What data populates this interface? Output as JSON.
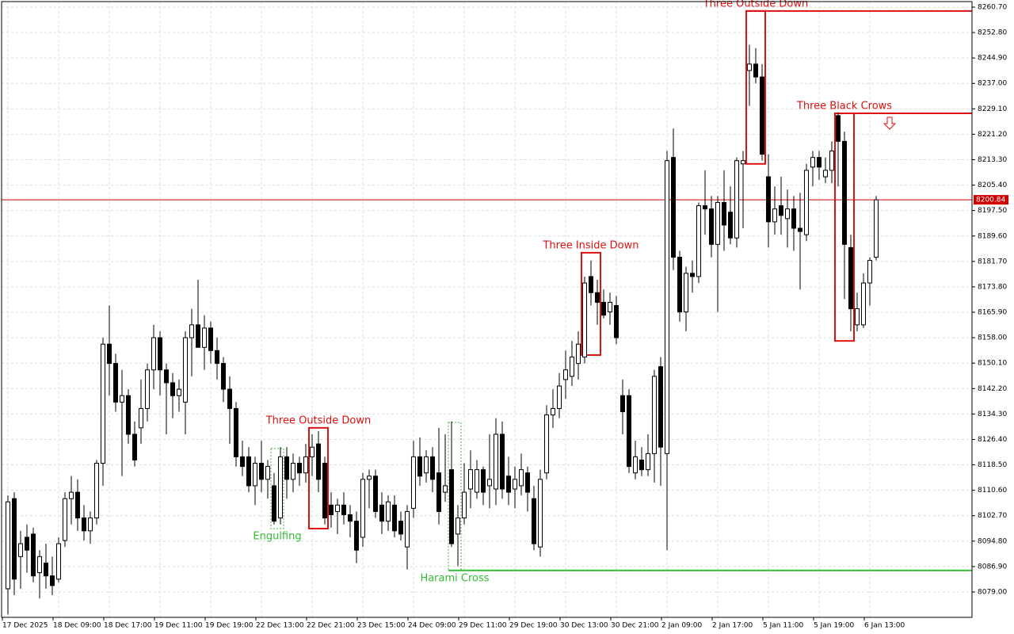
{
  "chart_data": {
    "type": "candlestick",
    "categories": [
      "17 Dec 2025",
      null,
      null,
      null,
      null,
      null,
      null,
      null,
      "18 Dec 09:00",
      null,
      null,
      null,
      null,
      null,
      null,
      null,
      "18 Dec 17:00",
      null,
      null,
      null,
      null,
      null,
      null,
      null,
      "19 Dec 11:00",
      null,
      null,
      null,
      null,
      null,
      null,
      null,
      "19 Dec 19:00",
      null,
      null,
      null,
      null,
      null,
      null,
      null,
      "22 Dec 13:00",
      null,
      null,
      null,
      null,
      null,
      null,
      null,
      "22 Dec 21:00",
      null,
      null,
      null,
      null,
      null,
      null,
      null,
      "23 Dec 15:00",
      null,
      null,
      null,
      null,
      null,
      null,
      null,
      "24 Dec 09:00",
      null,
      null,
      null,
      null,
      null,
      null,
      null,
      "29 Dec 11:00",
      null,
      null,
      null,
      null,
      null,
      null,
      null,
      "29 Dec 19:00",
      null,
      null,
      null,
      null,
      null,
      null,
      null,
      "30 Dec 13:00",
      null,
      null,
      null,
      null,
      null,
      null,
      null,
      "30 Dec 21:00",
      null,
      null,
      null,
      null,
      null,
      null,
      null,
      "2 Jan 09:00",
      null,
      null,
      null,
      null,
      null,
      null,
      null,
      "2 Jan 17:00",
      null,
      null,
      null,
      null,
      null,
      null,
      null,
      "5 Jan 11:00",
      null,
      null,
      null,
      null,
      null,
      null,
      null,
      "5 Jan 19:00",
      null,
      null,
      null,
      null,
      null,
      null,
      null,
      "6 Jan 13:00",
      null
    ],
    "ohlc": [
      [
        8080,
        8109,
        8072,
        8107
      ],
      [
        8108,
        8110,
        8078,
        8083
      ],
      [
        8090,
        8098,
        8080,
        8094
      ],
      [
        8096,
        8100,
        8085,
        8092
      ],
      [
        8097,
        8099,
        8082,
        8084
      ],
      [
        8085,
        8092,
        8077,
        8090
      ],
      [
        8088,
        8094,
        8080,
        8084
      ],
      [
        8084,
        8090,
        8078,
        8081
      ],
      [
        8083,
        8096,
        8082,
        8094
      ],
      [
        8095,
        8110,
        8093,
        8108
      ],
      [
        8108,
        8115,
        8100,
        8110
      ],
      [
        8110,
        8114,
        8098,
        8102
      ],
      [
        8102,
        8106,
        8095,
        8098
      ],
      [
        8098,
        8104,
        8094,
        8102
      ],
      [
        8102,
        8120,
        8100,
        8119
      ],
      [
        8119,
        8158,
        8112,
        8156
      ],
      [
        8156,
        8168,
        8140,
        8150
      ],
      [
        8150,
        8153,
        8135,
        8138
      ],
      [
        8138,
        8148,
        8115,
        8140
      ],
      [
        8140,
        8142,
        8125,
        8128
      ],
      [
        8128,
        8132,
        8118,
        8120
      ],
      [
        8130,
        8145,
        8125,
        8136
      ],
      [
        8136,
        8150,
        8132,
        8148
      ],
      [
        8148,
        8162,
        8142,
        8158
      ],
      [
        8158,
        8160,
        8140,
        8148
      ],
      [
        8148,
        8150,
        8128,
        8144
      ],
      [
        8144,
        8147,
        8133,
        8140
      ],
      [
        8140,
        8145,
        8135,
        8142
      ],
      [
        8138,
        8160,
        8128,
        8158
      ],
      [
        8158,
        8167,
        8146,
        8162
      ],
      [
        8162,
        8176,
        8155,
        8155
      ],
      [
        8155,
        8165,
        8148,
        8161
      ],
      [
        8161,
        8163,
        8150,
        8154
      ],
      [
        8154,
        8158,
        8145,
        8150
      ],
      [
        8150,
        8152,
        8138,
        8142
      ],
      [
        8142,
        8146,
        8125,
        8136
      ],
      [
        8136,
        8138,
        8118,
        8121
      ],
      [
        8121,
        8126,
        8115,
        8118
      ],
      [
        8121,
        8124,
        8110,
        8112
      ],
      [
        8112,
        8121,
        8106,
        8119
      ],
      [
        8119,
        8126,
        8110,
        8114
      ],
      [
        8114,
        8120,
        8108,
        8118
      ],
      [
        8112,
        8116,
        8100,
        8101
      ],
      [
        8102,
        8124,
        8100,
        8121
      ],
      [
        8121,
        8124,
        8108,
        8114
      ],
      [
        8114,
        8122,
        8110,
        8119
      ],
      [
        8119,
        8121,
        8112,
        8116
      ],
      [
        8116,
        8125,
        8113,
        8121
      ],
      [
        8121,
        8128,
        8115,
        8124
      ],
      [
        8125,
        8129,
        8110,
        8114
      ],
      [
        8119,
        8121,
        8100,
        8102
      ],
      [
        8106,
        8110,
        8099,
        8103
      ],
      [
        8104,
        8108,
        8097,
        8106
      ],
      [
        8106,
        8110,
        8100,
        8103
      ],
      [
        8103,
        8106,
        8096,
        8101
      ],
      [
        8101,
        8104,
        8088,
        8092
      ],
      [
        8096,
        8116,
        8093,
        8114
      ],
      [
        8114,
        8117,
        8105,
        8115
      ],
      [
        8115,
        8117,
        8102,
        8104
      ],
      [
        8106,
        8110,
        8097,
        8101
      ],
      [
        8101,
        8109,
        8098,
        8107
      ],
      [
        8106,
        8109,
        8096,
        8098
      ],
      [
        8101,
        8104,
        8095,
        8097
      ],
      [
        8093,
        8106,
        8086,
        8104
      ],
      [
        8105,
        8126,
        8102,
        8121
      ],
      [
        8121,
        8127,
        8112,
        8115
      ],
      [
        8116,
        8123,
        8113,
        8121
      ],
      [
        8121,
        8124,
        8110,
        8114
      ],
      [
        8116,
        8130,
        8100,
        8104
      ],
      [
        8110,
        8128,
        8107,
        8112
      ],
      [
        8117,
        8132,
        8093,
        8094
      ],
      [
        8097,
        8106,
        8087,
        8102
      ],
      [
        8102,
        8119,
        8100,
        8110
      ],
      [
        8111,
        8123,
        8105,
        8117
      ],
      [
        8110,
        8120,
        8108,
        8117
      ],
      [
        8117,
        8118,
        8106,
        8110
      ],
      [
        8112,
        8128,
        8105,
        8114
      ],
      [
        8111,
        8133,
        8106,
        8128
      ],
      [
        8128,
        8132,
        8108,
        8111
      ],
      [
        8115,
        8121,
        8106,
        8110
      ],
      [
        8111,
        8118,
        8105,
        8114
      ],
      [
        8112,
        8122,
        8109,
        8117
      ],
      [
        8116,
        8118,
        8104,
        8110
      ],
      [
        8108,
        8112,
        8092,
        8094
      ],
      [
        8093,
        8117,
        8090,
        8114
      ],
      [
        8116,
        8137,
        8114,
        8134
      ],
      [
        8134,
        8142,
        8130,
        8136
      ],
      [
        8136,
        8147,
        8133,
        8143
      ],
      [
        8145,
        8154,
        8139,
        8148
      ],
      [
        8146,
        8157,
        8143,
        8152
      ],
      [
        8150,
        8160,
        8145,
        8156
      ],
      [
        8152,
        8177,
        8150,
        8175
      ],
      [
        8177,
        8182,
        8168,
        8172
      ],
      [
        8172,
        8176,
        8162,
        8169
      ],
      [
        8169,
        8173,
        8164,
        8165
      ],
      [
        8166,
        8172,
        8162,
        8169
      ],
      [
        8168,
        8171,
        8156,
        8158
      ],
      [
        8140,
        8145,
        8128,
        8135
      ],
      [
        8140,
        8142,
        8116,
        8118
      ],
      [
        8116,
        8126,
        8114,
        8121
      ],
      [
        8120,
        8124,
        8115,
        8117
      ],
      [
        8117,
        8128,
        8115,
        8122
      ],
      [
        8122,
        8148,
        8113,
        8146
      ],
      [
        8149,
        8152,
        8112,
        8124
      ],
      [
        8122,
        8216,
        8092,
        8213
      ],
      [
        8214,
        8223,
        8179,
        8183
      ],
      [
        8183,
        8185,
        8163,
        8166
      ],
      [
        8166,
        8180,
        8160,
        8178
      ],
      [
        8178,
        8182,
        8172,
        8177
      ],
      [
        8177,
        8200,
        8175,
        8199
      ],
      [
        8199,
        8210,
        8190,
        8198
      ],
      [
        8198,
        8202,
        8183,
        8187
      ],
      [
        8187,
        8202,
        8166,
        8200
      ],
      [
        8200,
        8210,
        8185,
        8193
      ],
      [
        8197,
        8205,
        8187,
        8189
      ],
      [
        8189,
        8214,
        8186,
        8213
      ],
      [
        8212,
        8216,
        8192,
        8213
      ],
      [
        8241,
        8249,
        8230,
        8243
      ],
      [
        8243,
        8248,
        8237,
        8239
      ],
      [
        8239,
        8243,
        8213,
        8215
      ],
      [
        8208,
        8215,
        8186,
        8194
      ],
      [
        8194,
        8205,
        8190,
        8198
      ],
      [
        8199,
        8208,
        8190,
        8196
      ],
      [
        8195,
        8204,
        8186,
        8198
      ],
      [
        8198,
        8202,
        8185,
        8192
      ],
      [
        8192,
        8203,
        8173,
        8191
      ],
      [
        8190,
        8212,
        8188,
        8210
      ],
      [
        8211,
        8216,
        8205,
        8214
      ],
      [
        8214,
        8216,
        8207,
        8211
      ],
      [
        8208,
        8214,
        8206,
        8210
      ],
      [
        8210,
        8219,
        8206,
        8216
      ],
      [
        8227,
        8228,
        8205,
        8219
      ],
      [
        8219,
        8222,
        8170,
        8187
      ],
      [
        8186,
        8190,
        8160,
        8167
      ],
      [
        8162,
        8172,
        8160,
        8167
      ],
      [
        8162,
        8178,
        8161,
        8175
      ],
      [
        8175,
        8183,
        8168,
        8182
      ],
      [
        8183,
        8202,
        8182,
        8200.84
      ]
    ],
    "ylim": [
      8071.12,
      8262.42
    ],
    "yticks": [
      {
        "value": 8260.7,
        "label": "8260.70"
      },
      {
        "value": 8252.8,
        "label": "8252.80"
      },
      {
        "value": 8244.9,
        "label": "8244.90"
      },
      {
        "value": 8237,
        "label": "8237.00"
      },
      {
        "value": 8229.1,
        "label": "8229.10"
      },
      {
        "value": 8221.2,
        "label": "8221.20"
      },
      {
        "value": 8213.3,
        "label": "8213.30"
      },
      {
        "value": 8205.4,
        "label": "8205.40"
      },
      {
        "value": 8197.5,
        "label": "8197.50"
      },
      {
        "value": 8189.6,
        "label": "8189.60"
      },
      {
        "value": 8181.7,
        "label": "8181.70"
      },
      {
        "value": 8173.8,
        "label": "8173.80"
      },
      {
        "value": 8165.9,
        "label": "8165.90"
      },
      {
        "value": 8158,
        "label": "8158.00"
      },
      {
        "value": 8150.1,
        "label": "8150.10"
      },
      {
        "value": 8142.2,
        "label": "8142.20"
      },
      {
        "value": 8134.3,
        "label": "8134.30"
      },
      {
        "value": 8126.4,
        "label": "8126.40"
      },
      {
        "value": 8118.5,
        "label": "8118.50"
      },
      {
        "value": 8110.6,
        "label": "8110.60"
      },
      {
        "value": 8102.7,
        "label": "8102.70"
      },
      {
        "value": 8094.8,
        "label": "8094.80"
      },
      {
        "value": 8086.9,
        "label": "8086.90"
      },
      {
        "value": 8079,
        "label": "8079.00"
      }
    ],
    "grid": true,
    "current_price": {
      "value": 8200.84,
      "label": "8200.84",
      "color": "#d00000"
    },
    "patterns": [
      {
        "name": "Engulfing",
        "color": "#33bb33",
        "start": 42,
        "end": 43,
        "top": 8123.6,
        "bottom": 8098.7,
        "label_side": "below",
        "dashed": true
      },
      {
        "name": "Three Outside Down",
        "color": "#dd1111",
        "start": 48,
        "end": 50,
        "top": 8130,
        "bottom": 8098.7,
        "label_side": "above"
      },
      {
        "name": "Harami Cross",
        "color": "#33bb33",
        "start": 70,
        "end": 71,
        "top": 8131.7,
        "bottom": 8085.7,
        "label_side": "below",
        "dashed": true,
        "level": 8085.7
      },
      {
        "name": "Three Inside Down",
        "color": "#dd1111",
        "start": 91,
        "end": 93,
        "top": 8184.4,
        "bottom": 8152.6,
        "label_side": "above"
      },
      {
        "name": "Three Outside Down",
        "color": "#dd1111",
        "start": 117,
        "end": 119,
        "top": 8259.5,
        "bottom": 8212,
        "label_side": "above",
        "level": 8259.5
      },
      {
        "name": "Three Black Crows",
        "color": "#dd1111",
        "start": 131,
        "end": 133,
        "top": 8227.7,
        "bottom": 8157,
        "label_side": "above",
        "level": 8227.7,
        "arrow": "down"
      }
    ]
  }
}
